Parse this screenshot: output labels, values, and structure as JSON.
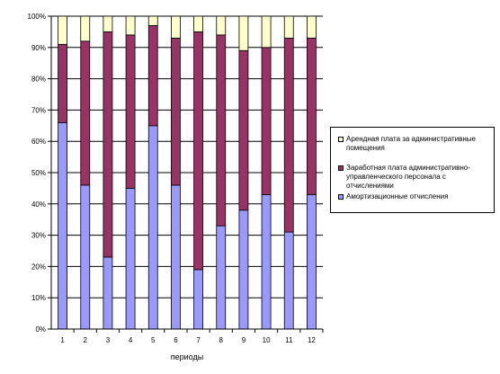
{
  "chart_data": {
    "type": "bar",
    "stacked": true,
    "percent_stacked": true,
    "categories": [
      "1",
      "2",
      "3",
      "4",
      "5",
      "6",
      "7",
      "8",
      "9",
      "10",
      "11",
      "12"
    ],
    "series": [
      {
        "name": "Амортизационные отчисления",
        "color": "#9999ff",
        "values": [
          66,
          46,
          23,
          45,
          65,
          46,
          19,
          33,
          38,
          43,
          31,
          43
        ]
      },
      {
        "name": "Заработная плата административно-управленческого персонала с отчислениями",
        "color": "#993366",
        "values": [
          25,
          46,
          72,
          49,
          32,
          47,
          76,
          61,
          51,
          47,
          62,
          50
        ]
      },
      {
        "name": "Арендная плата за административные помещения",
        "color": "#ffffcc",
        "values": [
          9,
          8,
          5,
          6,
          3,
          7,
          5,
          6,
          11,
          10,
          7,
          7
        ]
      }
    ],
    "xlabel": "периоды",
    "ylabel": "",
    "ylim": [
      0,
      100
    ],
    "yticks": [
      "0%",
      "10%",
      "20%",
      "30%",
      "40%",
      "50%",
      "60%",
      "70%",
      "80%",
      "90%",
      "100%"
    ],
    "grid": true,
    "legend_position": "right",
    "legend_order": [
      "Арендная плата за административные помещения",
      "Заработная плата административно-управленческого персонала с отчислениями",
      "Амортизационные отчисления"
    ]
  }
}
